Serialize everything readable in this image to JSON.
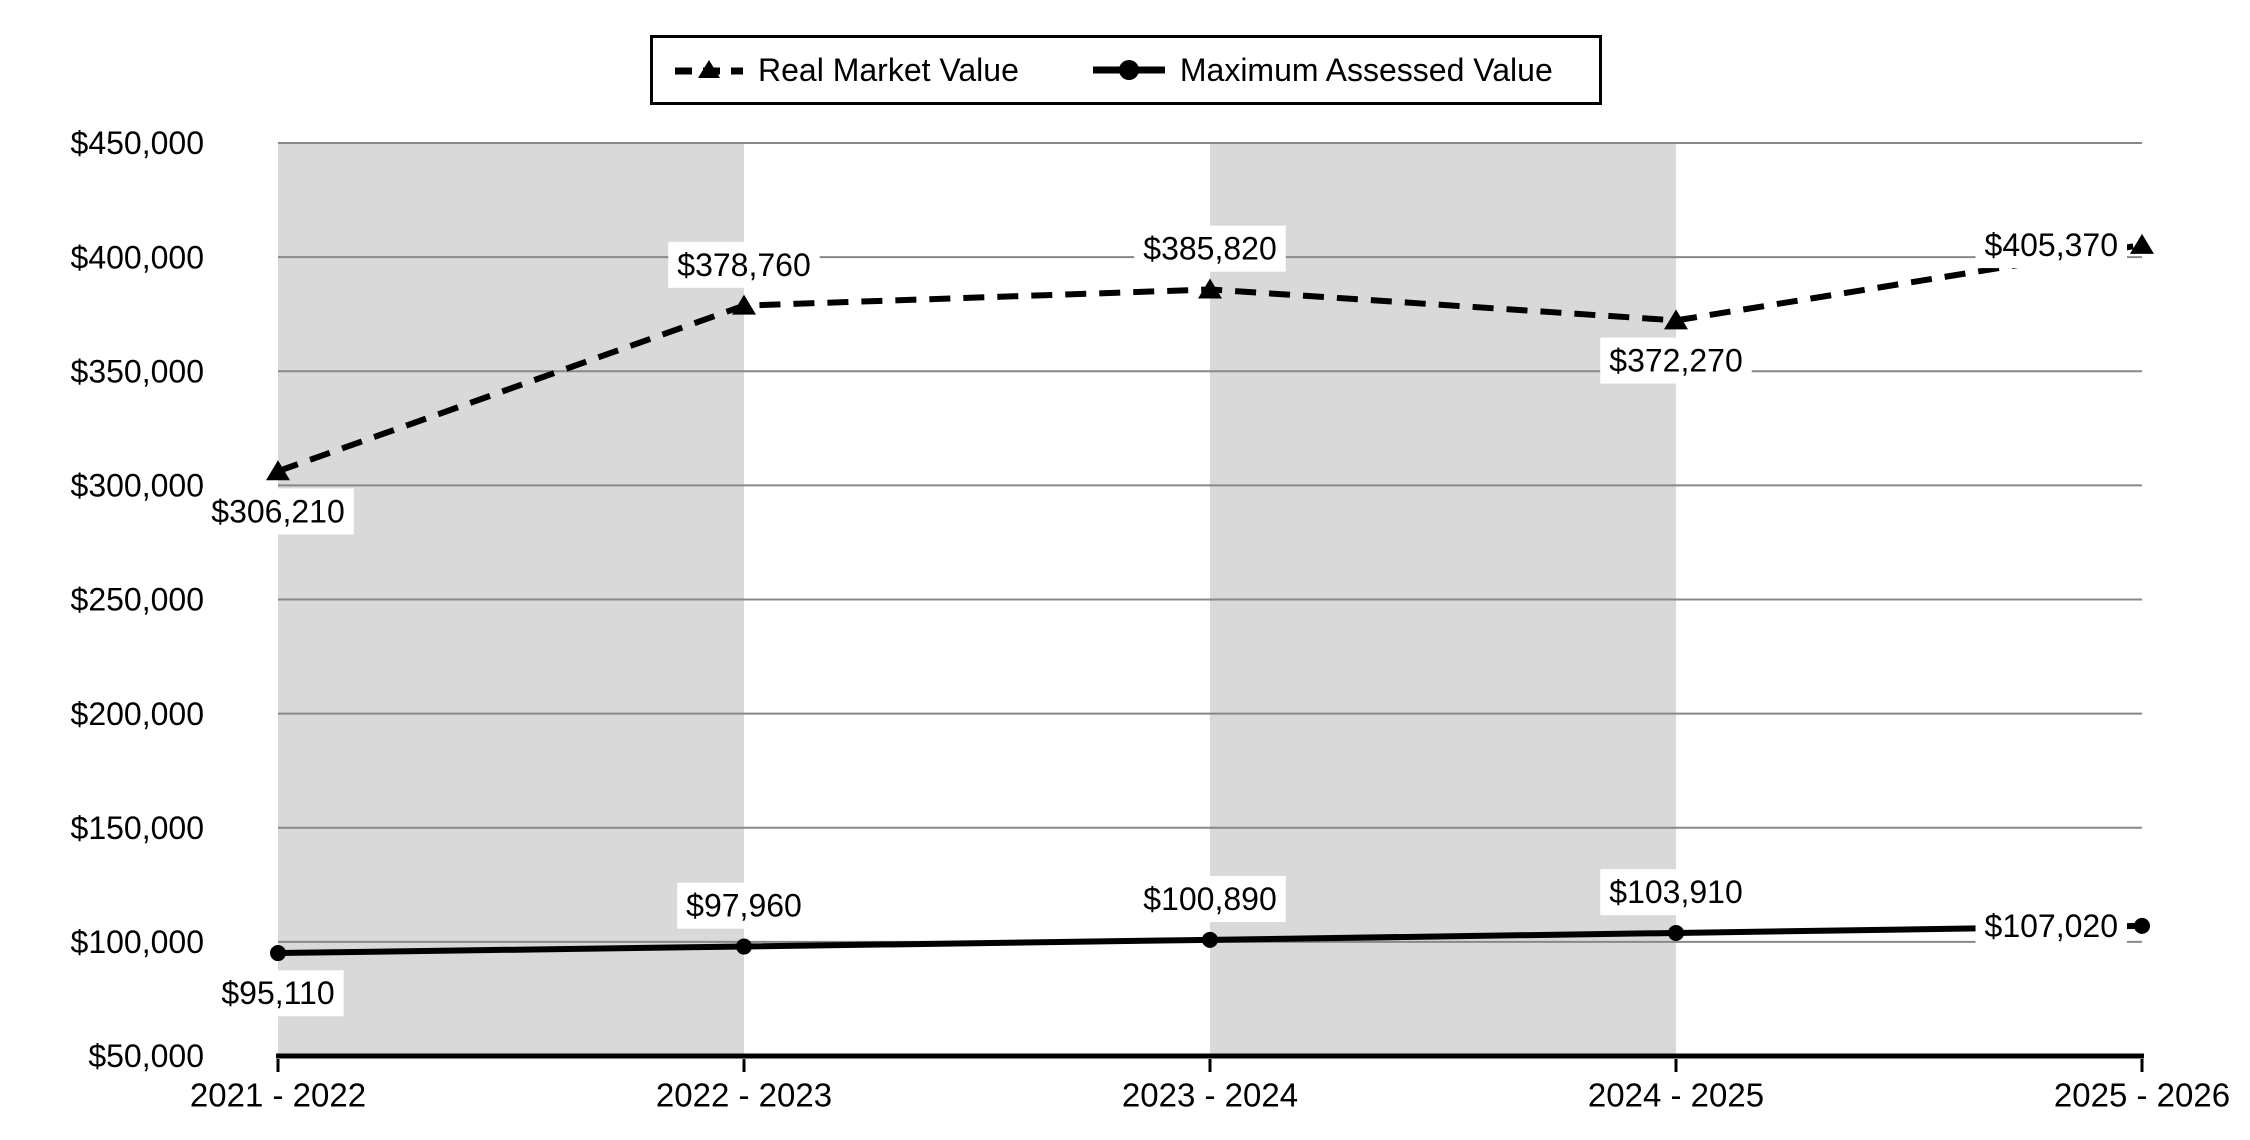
{
  "chart_data": {
    "type": "line",
    "title": "",
    "categories": [
      "2021 - 2022",
      "2022 - 2023",
      "2023 - 2024",
      "2024 - 2025",
      "2025 - 2026"
    ],
    "series": [
      {
        "name": "Real Market Value",
        "line_style": "dashed",
        "marker": "triangle",
        "values": [
          306210,
          378760,
          385820,
          372270,
          405370
        ],
        "labels": [
          "$306,210",
          "$378,760",
          "$385,820",
          "$372,270",
          "$405,370"
        ]
      },
      {
        "name": "Maximum Assessed Value",
        "line_style": "solid",
        "marker": "circle",
        "values": [
          95110,
          97960,
          100890,
          103910,
          107020
        ],
        "labels": [
          "$95,110",
          "$97,960",
          "$100,890",
          "$103,910",
          "$107,020"
        ]
      }
    ],
    "y_axis": {
      "min": 50000,
      "max": 450000,
      "step": 50000,
      "tick_labels": [
        "$450,000",
        "$400,000",
        "$350,000",
        "$300,000",
        "$250,000",
        "$200,000",
        "$150,000",
        "$100,000",
        "$50,000"
      ]
    },
    "x_axis": {
      "tick_labels": [
        "2021 - 2022",
        "2022 - 2023",
        "2023 - 2024",
        "2024 - 2025",
        "2025 - 2026"
      ]
    },
    "shaded_intervals": [
      [
        0,
        1
      ],
      [
        2,
        3
      ]
    ],
    "legend": {
      "position": "top-center",
      "entries": [
        "Real Market Value",
        "Maximum Assessed Value"
      ]
    },
    "grid": "horizontal-only",
    "colors": {
      "band": "#d9d9d9",
      "gridline": "#888888",
      "series": "#000000",
      "label_background": "#ffffff",
      "background": "#ffffff"
    }
  }
}
